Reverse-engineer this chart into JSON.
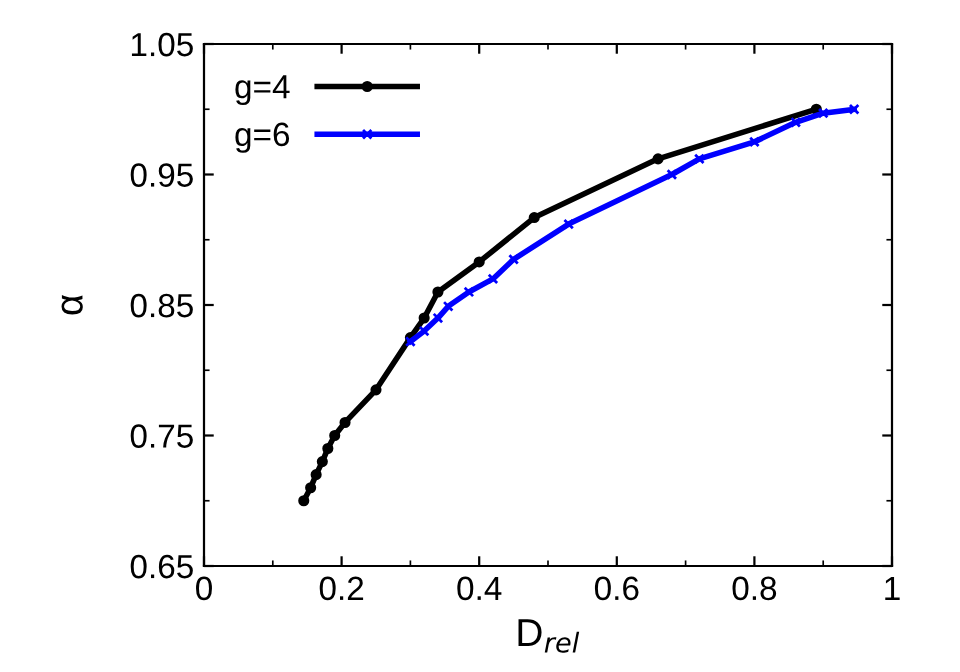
{
  "chart_data": {
    "type": "line",
    "xlabel": "D$_{rel}$",
    "ylabel": "α",
    "xlim": [
      0,
      1
    ],
    "ylim": [
      0.65,
      1.05
    ],
    "xticks": [
      0,
      0.2,
      0.4,
      0.6,
      0.8,
      1
    ],
    "yticks": [
      0.65,
      0.75,
      0.85,
      0.95,
      1.05
    ],
    "legend": "top left",
    "grid": false,
    "series": [
      {
        "name": "g=4",
        "color": "#000000",
        "marker": "circle",
        "x": [
          0.145,
          0.155,
          0.163,
          0.172,
          0.18,
          0.19,
          0.205,
          0.25,
          0.3,
          0.32,
          0.34,
          0.4,
          0.48,
          0.66,
          0.89
        ],
        "values": [
          0.7,
          0.71,
          0.72,
          0.73,
          0.74,
          0.75,
          0.76,
          0.785,
          0.825,
          0.84,
          0.86,
          0.883,
          0.917,
          0.962,
          1.0
        ]
      },
      {
        "name": "g=6",
        "color": "#0000ff",
        "marker": "cross",
        "x": [
          0.3,
          0.32,
          0.34,
          0.355,
          0.385,
          0.42,
          0.45,
          0.53,
          0.68,
          0.72,
          0.8,
          0.86,
          0.9,
          0.945
        ],
        "values": [
          0.822,
          0.83,
          0.84,
          0.849,
          0.86,
          0.87,
          0.885,
          0.912,
          0.95,
          0.962,
          0.975,
          0.99,
          0.997,
          1.0
        ]
      }
    ]
  }
}
